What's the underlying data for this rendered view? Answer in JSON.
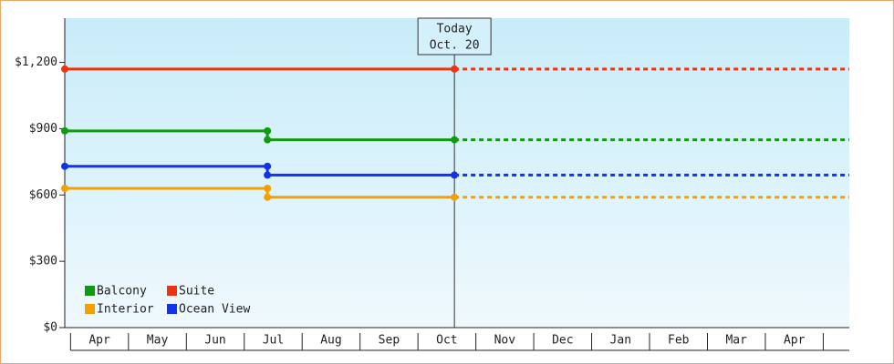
{
  "chart_data": {
    "type": "step",
    "categories": [
      "Apr",
      "May",
      "Jun",
      "Jul",
      "Aug",
      "Sep",
      "Oct",
      "Nov",
      "Dec",
      "Jan",
      "Feb",
      "Mar",
      "Apr"
    ],
    "xlim": [
      -0.1,
      13.45
    ],
    "ylim": [
      0,
      1400
    ],
    "yticks": [
      {
        "value": 0,
        "label": "$0"
      },
      {
        "value": 300,
        "label": "$300"
      },
      {
        "value": 600,
        "label": "$600"
      },
      {
        "value": 900,
        "label": "$900"
      },
      {
        "value": 1200,
        "label": "$1,200"
      }
    ],
    "annotation": {
      "text": [
        "Today",
        "Oct. 20"
      ],
      "x": 6.63
    },
    "legend": "lower-left",
    "series": [
      {
        "name": "Balcony",
        "color": "#119911",
        "x": [
          -0.1,
          3.4,
          3.4,
          6.63
        ],
        "values": [
          890,
          890,
          850,
          850
        ]
      },
      {
        "name": "Suite",
        "color": "#ee3311",
        "x": [
          -0.1,
          6.63
        ],
        "values": [
          1170,
          1170
        ]
      },
      {
        "name": "Interior",
        "color": "#f5a000",
        "x": [
          -0.1,
          3.4,
          3.4,
          6.63
        ],
        "values": [
          630,
          630,
          590,
          590
        ]
      },
      {
        "name": "Ocean View",
        "color": "#1133ee",
        "x": [
          -0.1,
          3.4,
          3.4,
          6.63
        ],
        "values": [
          730,
          730,
          690,
          690
        ]
      }
    ]
  }
}
